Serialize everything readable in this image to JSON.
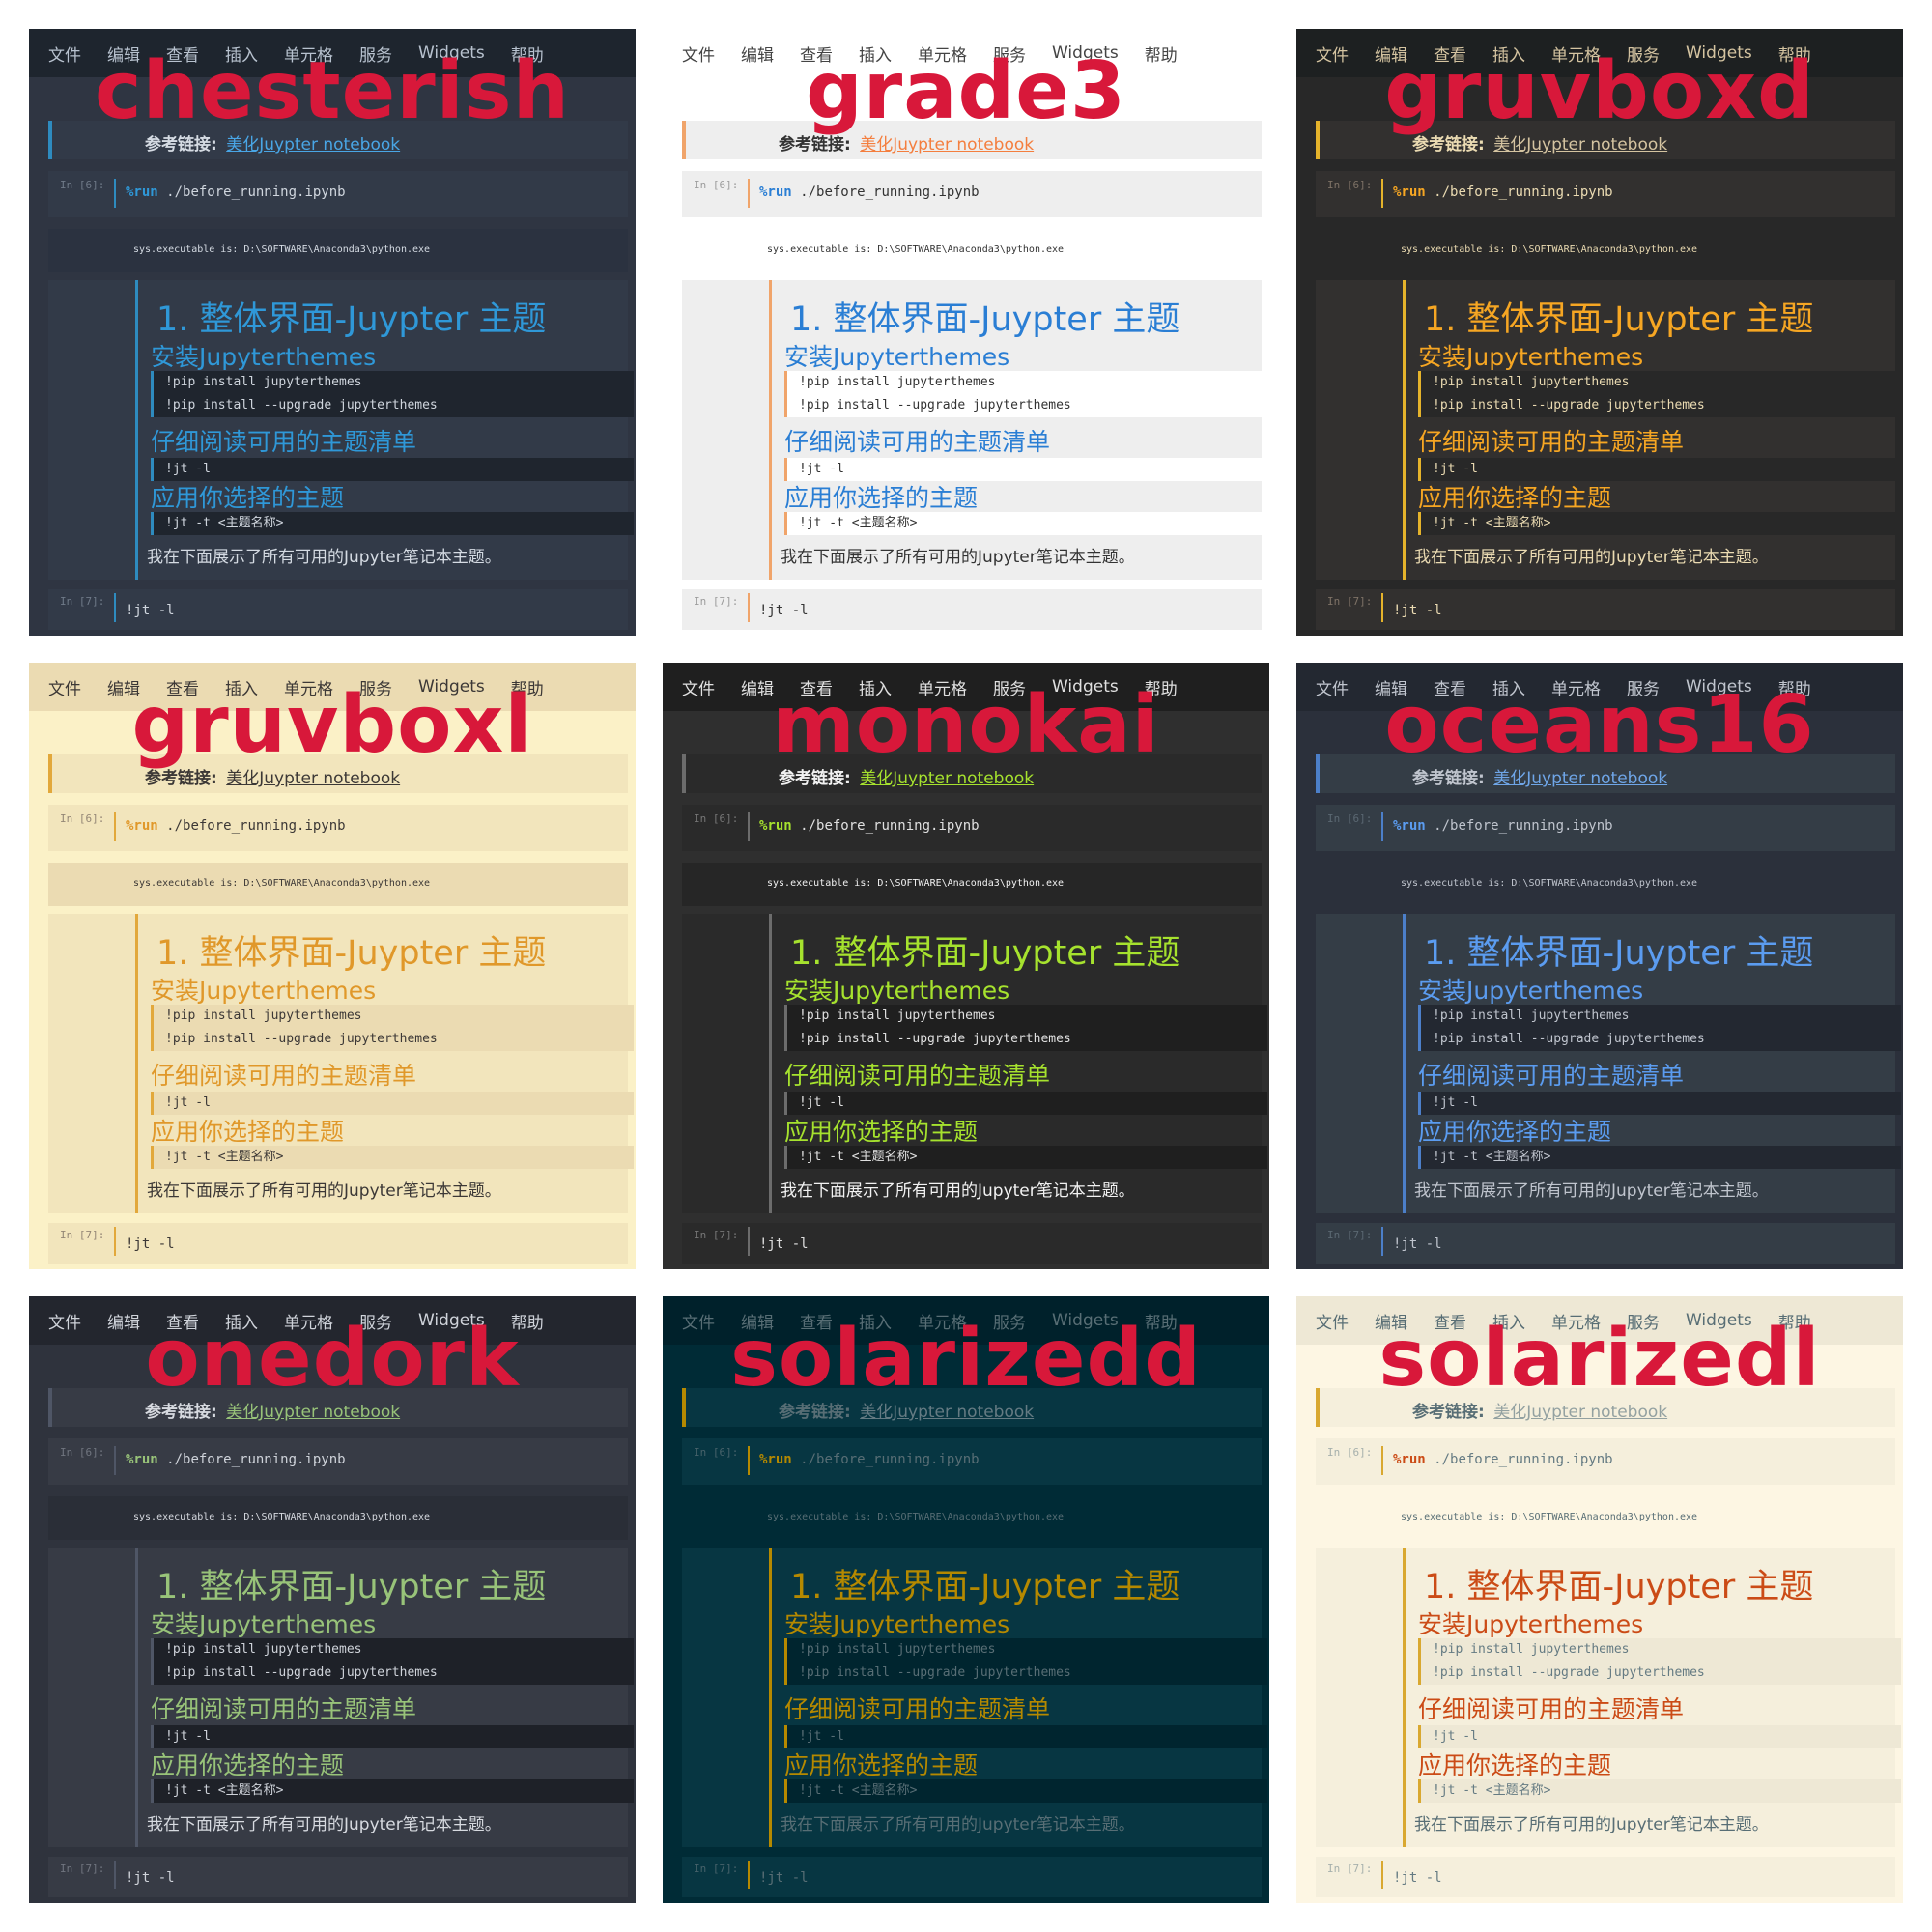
{
  "menu": [
    "文件",
    "编辑",
    "查看",
    "插入",
    "单元格",
    "服务",
    "Widgets",
    "帮助"
  ],
  "ref_label": "参考链接:",
  "ref_link": "美化Juypter notebook",
  "in_prompt_1": "In [6]:",
  "run_magic": "%run",
  "run_path": "./before_running.ipynb",
  "output_text": "sys.executable is:  D:\\SOFTWARE\\Anaconda3\\python.exe",
  "h1": "1. 整体界面-Juypter 主题",
  "h2_install": "安装Jupyterthemes",
  "code_install": [
    "!pip install jupyterthemes",
    "!pip install --upgrade jupyterthemes"
  ],
  "h2_list": "仔细阅读可用的主题清单",
  "code_list": "!jt -l",
  "h2_apply": "应用你选择的主题",
  "code_apply": "!jt -t <主题名称>",
  "para": "我在下面展示了所有可用的Jupyter笔记本主题。",
  "in_prompt_2": "In [7]:",
  "last_code": "!jt -l",
  "themes": [
    {
      "name": "chesterish",
      "bg": "#2f3542",
      "menu_bg": "#1e252e",
      "menu_fg": "#b8c2cf",
      "cell_bg": "#323a48",
      "out_bg": "#2b3240",
      "code_bg": "#1f252e",
      "code_fg": "#d0d6de",
      "accent": "#2e8bbf",
      "h_color": "#2f98d8",
      "text": "#d5dbe3",
      "link": "#49a6e6",
      "prompt": "#7f8a99"
    },
    {
      "name": "grade3",
      "bg": "#ffffff",
      "menu_bg": "#ffffff",
      "menu_fg": "#444444",
      "cell_bg": "#eeeeee",
      "out_bg": "#ffffff",
      "code_bg": "#ffffff",
      "code_fg": "#333333",
      "accent": "#f0a46a",
      "h_color": "#2a7ed4",
      "text": "#333333",
      "link": "#f47e3e",
      "prompt": "#888888"
    },
    {
      "name": "gruvboxd",
      "bg": "#282828",
      "menu_bg": "#1d2021",
      "menu_fg": "#d5c4a1",
      "cell_bg": "#32302f",
      "out_bg": "#282828",
      "code_bg": "#282828",
      "code_fg": "#ebdbb2",
      "accent": "#e5b32b",
      "h_color": "#f6a623",
      "text": "#ebdbb2",
      "link": "#d5c4a1",
      "prompt": "#928374"
    },
    {
      "name": "gruvboxl",
      "bg": "#fbf1c7",
      "menu_bg": "#ebdbb2",
      "menu_fg": "#3c3836",
      "cell_bg": "#f2e5bc",
      "out_bg": "#ebdbb2",
      "code_bg": "#ebdbb2",
      "code_fg": "#3c3836",
      "accent": "#e2a83b",
      "h_color": "#e0982a",
      "text": "#3c3836",
      "link": "#3c3836",
      "prompt": "#7c6f64"
    },
    {
      "name": "monokai",
      "bg": "#2f2f2f",
      "menu_bg": "#1f1f1f",
      "menu_fg": "#e0e0e0",
      "cell_bg": "#2a2a2a",
      "out_bg": "#262626",
      "code_bg": "#1f1f1f",
      "code_fg": "#e0e0e0",
      "accent": "#6c6c6c",
      "h_color": "#a6e22e",
      "text": "#f2f2f2",
      "link": "#a6e22e",
      "prompt": "#8a8a8a"
    },
    {
      "name": "oceans16",
      "bg": "#2b303b",
      "menu_bg": "#232831",
      "menu_fg": "#c0c5ce",
      "cell_bg": "#343d46",
      "out_bg": "#2b303b",
      "code_bg": "#232831",
      "code_fg": "#c0c5ce",
      "accent": "#4c7fc9",
      "h_color": "#5b9cf0",
      "text": "#c0c5ce",
      "link": "#6fa6e8",
      "prompt": "#65737e"
    },
    {
      "name": "onedork",
      "bg": "#2f333d",
      "menu_bg": "#23262e",
      "menu_fg": "#cfd3da",
      "cell_bg": "#373b45",
      "out_bg": "#2a2e37",
      "code_bg": "#1e2128",
      "code_fg": "#cfd3da",
      "accent": "#4f5666",
      "h_color": "#98c379",
      "text": "#d7dae0",
      "link": "#98c379",
      "prompt": "#7f848e"
    },
    {
      "name": "solarizedd",
      "bg": "#002b36",
      "menu_bg": "#00212b",
      "menu_fg": "#586e75",
      "cell_bg": "#073642",
      "out_bg": "#002b36",
      "code_bg": "#00252f",
      "code_fg": "#586e75",
      "accent": "#b58900",
      "h_color": "#b58900",
      "text": "#586e75",
      "link": "#657b83",
      "prompt": "#586e75"
    },
    {
      "name": "solarizedl",
      "bg": "#fdf6e3",
      "menu_bg": "#eee8d5",
      "menu_fg": "#586e75",
      "cell_bg": "#f5efdc",
      "out_bg": "#fdf6e3",
      "code_bg": "#eee8d5",
      "code_fg": "#657b83",
      "accent": "#d9a830",
      "h_color": "#cb4b16",
      "text": "#586e75",
      "link": "#93a1a1",
      "prompt": "#93a1a1"
    }
  ]
}
